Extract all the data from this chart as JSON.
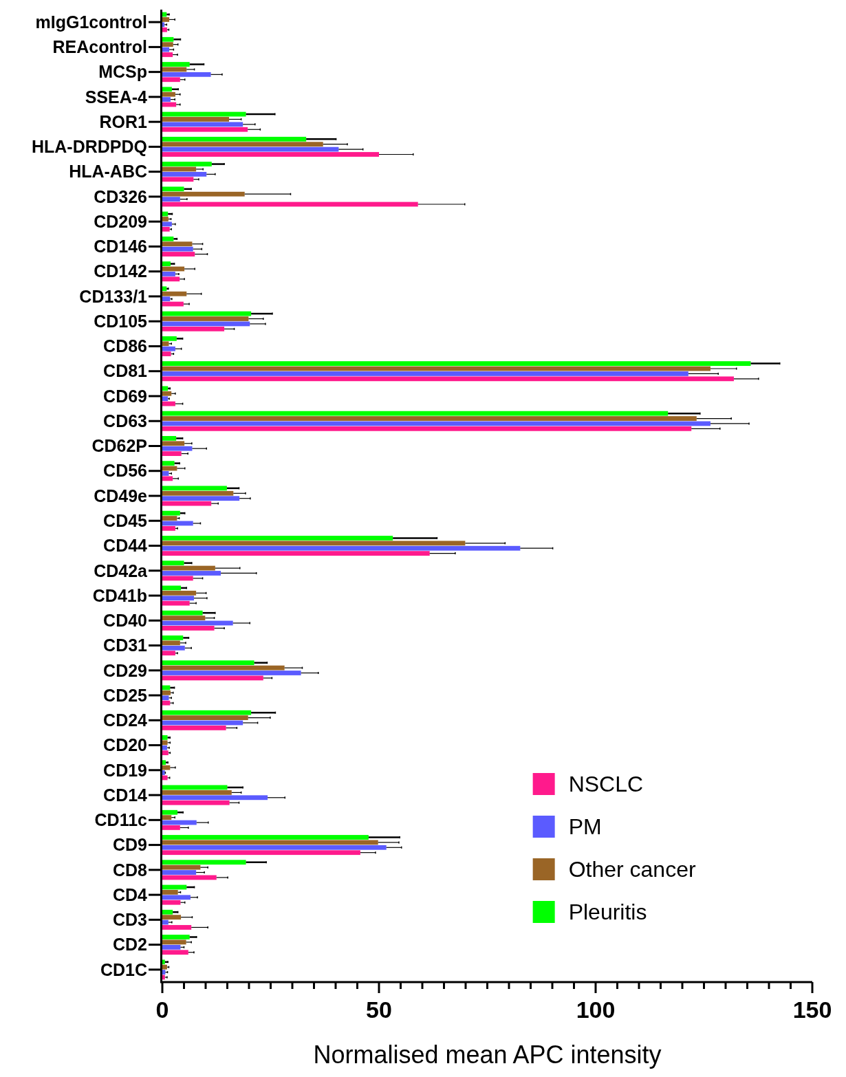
{
  "chart_data": {
    "type": "bar",
    "orientation": "horizontal",
    "xlabel": "Normalised mean APC intensity",
    "categories": [
      "mIgG1control",
      "REAcontrol",
      "MCSp",
      "SSEA-4",
      "ROR1",
      "HLA-DRDPDQ",
      "HLA-ABC",
      "CD326",
      "CD209",
      "CD146",
      "CD142",
      "CD133/1",
      "CD105",
      "CD86",
      "CD81",
      "CD69",
      "CD63",
      "CD62P",
      "CD56",
      "CD49e",
      "CD45",
      "CD44",
      "CD42a",
      "CD41b",
      "CD40",
      "CD31",
      "CD29",
      "CD25",
      "CD24",
      "CD20",
      "CD19",
      "CD14",
      "CD11c",
      "CD9",
      "CD8",
      "CD4",
      "CD3",
      "CD2",
      "CD1C"
    ],
    "series": [
      {
        "name": "NSCLC",
        "color": "#ff1a8c",
        "values": [
          1.1,
          2.4,
          4.1,
          3.2,
          19.7,
          50.0,
          7.2,
          59.0,
          1.7,
          7.5,
          4.0,
          4.9,
          14.3,
          2.0,
          131.9,
          3.0,
          122.1,
          4.4,
          2.4,
          11.3,
          3.0,
          61.7,
          7.1,
          6.3,
          12.0,
          3.0,
          23.3,
          1.8,
          14.7,
          1.4,
          1.2,
          15.5,
          4.1,
          45.7,
          12.5,
          4.2,
          6.7,
          6.0,
          0.6
        ],
        "errors": [
          [
            1.1,
            1.5
          ],
          [
            2.4,
            3.5
          ],
          [
            4.1,
            5.2
          ],
          [
            3.2,
            4.1
          ],
          [
            19.7,
            22.6
          ],
          [
            50.0,
            57.9
          ],
          [
            7.2,
            8.4
          ],
          [
            59.0,
            69.8
          ],
          [
            1.7,
            2.1
          ],
          [
            7.5,
            10.4
          ],
          [
            4.0,
            5.1
          ],
          [
            4.9,
            6.2
          ],
          [
            14.3,
            16.6
          ],
          [
            2.0,
            2.6
          ],
          [
            131.9,
            137.6
          ],
          [
            3.0,
            4.7
          ],
          [
            122.1,
            128.7
          ],
          [
            4.4,
            5.9
          ],
          [
            2.4,
            3.7
          ],
          [
            11.3,
            12.9
          ],
          [
            3.0,
            3.5
          ],
          [
            61.7,
            67.6
          ],
          [
            7.1,
            9.3
          ],
          [
            6.3,
            7.8
          ],
          [
            12.0,
            14.3
          ],
          [
            3.0,
            3.5
          ],
          [
            23.3,
            25.3
          ],
          [
            1.8,
            2.5
          ],
          [
            14.7,
            17.2
          ],
          [
            1.4,
            1.8
          ],
          [
            1.2,
            1.7
          ],
          [
            15.5,
            17.7
          ],
          [
            4.1,
            6.0
          ],
          [
            45.7,
            49.2
          ],
          [
            12.5,
            15.1
          ],
          [
            4.2,
            5.2
          ],
          [
            6.7,
            10.5
          ],
          [
            6.0,
            7.3
          ],
          [
            0.6,
            1.1
          ]
        ]
      },
      {
        "name": "PM",
        "color": "#5b5bff",
        "values": [
          0.5,
          1.6,
          11.2,
          1.9,
          18.6,
          40.7,
          10.2,
          4.1,
          2.2,
          7.1,
          3.0,
          1.8,
          20.2,
          3.0,
          121.4,
          1.3,
          126.5,
          6.9,
          1.5,
          17.8,
          7.1,
          82.6,
          13.5,
          7.3,
          16.3,
          5.2,
          32.0,
          1.5,
          18.6,
          1.1,
          0.6,
          24.3,
          7.9,
          51.7,
          7.8,
          6.5,
          1.4,
          4.2,
          0.7
        ],
        "errors": [
          [
            0.5,
            1.0
          ],
          [
            1.6,
            2.6
          ],
          [
            11.2,
            13.8
          ],
          [
            1.9,
            2.9
          ],
          [
            18.6,
            21.4
          ],
          [
            40.7,
            46.3
          ],
          [
            10.2,
            12.2
          ],
          [
            4.1,
            5.7
          ],
          [
            2.2,
            3.0
          ],
          [
            7.1,
            9.1
          ],
          [
            3.0,
            3.8
          ],
          [
            1.8,
            2.2
          ],
          [
            20.2,
            23.8
          ],
          [
            3.0,
            4.4
          ],
          [
            121.4,
            128.3
          ],
          [
            1.3,
            1.6
          ],
          [
            126.5,
            135.4
          ],
          [
            6.9,
            10.2
          ],
          [
            1.5,
            2.1
          ],
          [
            17.8,
            20.3
          ],
          [
            7.1,
            8.8
          ],
          [
            82.6,
            90.1
          ],
          [
            13.5,
            21.7
          ],
          [
            7.3,
            10.3
          ],
          [
            16.3,
            20.2
          ],
          [
            5.2,
            6.7
          ],
          [
            32.0,
            36.0
          ],
          [
            1.5,
            2.1
          ],
          [
            18.6,
            22.0
          ],
          [
            1.1,
            1.6
          ],
          [
            0.6,
            0.7
          ],
          [
            24.3,
            28.3
          ],
          [
            7.9,
            10.6
          ],
          [
            51.7,
            55.2
          ],
          [
            7.8,
            9.7
          ],
          [
            6.5,
            8.1
          ],
          [
            1.4,
            2.2
          ],
          [
            4.2,
            5.0
          ],
          [
            0.7,
            1.2
          ]
        ]
      },
      {
        "name": "Other cancer",
        "color": "#9a6526",
        "values": [
          1.6,
          2.5,
          5.6,
          3.0,
          15.4,
          37.1,
          7.8,
          19.0,
          1.4,
          6.9,
          5.1,
          5.6,
          19.9,
          1.5,
          126.5,
          2.1,
          123.3,
          5.1,
          3.4,
          16.4,
          3.4,
          69.9,
          12.2,
          7.8,
          9.9,
          4.1,
          28.2,
          1.9,
          19.8,
          1.2,
          1.8,
          16.0,
          2.1,
          49.8,
          8.8,
          3.6,
          4.3,
          5.5,
          1.1
        ],
        "errors": [
          [
            1.6,
            2.9
          ],
          [
            2.5,
            3.6
          ],
          [
            5.6,
            7.4
          ],
          [
            3.0,
            4.1
          ],
          [
            15.4,
            18.2
          ],
          [
            37.1,
            42.7
          ],
          [
            7.8,
            9.4
          ],
          [
            19.0,
            29.6
          ],
          [
            1.4,
            2.0
          ],
          [
            6.9,
            9.3
          ],
          [
            5.1,
            7.5
          ],
          [
            5.6,
            9.0
          ],
          [
            19.9,
            23.3
          ],
          [
            1.5,
            2.1
          ],
          [
            126.5,
            132.5
          ],
          [
            2.1,
            3.0
          ],
          [
            123.3,
            131.3
          ],
          [
            5.1,
            6.8
          ],
          [
            3.4,
            5.2
          ],
          [
            16.4,
            19.2
          ],
          [
            3.4,
            3.9
          ],
          [
            69.9,
            79.1
          ],
          [
            12.2,
            17.9
          ],
          [
            7.8,
            10.1
          ],
          [
            9.9,
            12.0
          ],
          [
            4.1,
            5.4
          ],
          [
            28.2,
            32.3
          ],
          [
            1.9,
            2.5
          ],
          [
            19.8,
            24.9
          ],
          [
            1.2,
            1.8
          ],
          [
            1.8,
            3.0
          ],
          [
            16.0,
            18.2
          ],
          [
            2.1,
            2.9
          ],
          [
            49.8,
            54.6
          ],
          [
            8.8,
            10.5
          ],
          [
            3.6,
            4.2
          ],
          [
            4.3,
            6.9
          ],
          [
            5.5,
            6.7
          ],
          [
            1.1,
            1.5
          ]
        ]
      },
      {
        "name": "Pleuritis",
        "color": "#00ff00",
        "values": [
          1.0,
          2.6,
          6.3,
          2.2,
          19.3,
          33.2,
          11.4,
          5.0,
          1.3,
          2.6,
          1.9,
          1.0,
          20.5,
          3.3,
          135.8,
          1.3,
          116.7,
          3.2,
          2.8,
          14.9,
          4.1,
          53.2,
          5.0,
          4.3,
          9.3,
          4.8,
          21.2,
          1.8,
          20.5,
          1.2,
          0.8,
          15.0,
          3.5,
          47.6,
          19.3,
          5.6,
          2.4,
          6.3,
          0.6
        ],
        "errors": [
          [
            1.0,
            1.6
          ],
          [
            2.6,
            4.2
          ],
          [
            6.3,
            9.6
          ],
          [
            2.2,
            3.7
          ],
          [
            19.3,
            26.0
          ],
          [
            33.2,
            40.1
          ],
          [
            11.4,
            14.3
          ],
          [
            5.0,
            6.7
          ],
          [
            1.3,
            2.3
          ],
          [
            2.6,
            3.4
          ],
          [
            1.9,
            2.8
          ],
          [
            1.0,
            1.4
          ],
          [
            20.5,
            25.4
          ],
          [
            3.3,
            4.7
          ],
          [
            135.8,
            142.5
          ],
          [
            1.3,
            1.8
          ],
          [
            116.7,
            124.1
          ],
          [
            3.2,
            4.7
          ],
          [
            2.8,
            4.0
          ],
          [
            14.9,
            17.7
          ],
          [
            4.1,
            5.2
          ],
          [
            53.2,
            63.4
          ],
          [
            5.0,
            6.8
          ],
          [
            4.3,
            5.6
          ],
          [
            9.3,
            12.2
          ],
          [
            4.8,
            6.1
          ],
          [
            21.2,
            24.2
          ],
          [
            1.8,
            2.8
          ],
          [
            20.5,
            26.1
          ],
          [
            1.2,
            1.8
          ],
          [
            0.8,
            1.3
          ],
          [
            15.0,
            18.6
          ],
          [
            3.5,
            4.8
          ],
          [
            47.6,
            54.8
          ],
          [
            19.3,
            24.0
          ],
          [
            5.6,
            7.4
          ],
          [
            2.4,
            3.6
          ],
          [
            6.3,
            7.9
          ],
          [
            0.6,
            1.3
          ]
        ]
      }
    ],
    "xlim": [
      0,
      150
    ],
    "xticks": [
      0,
      {
        "value": 5,
        "label": null
      },
      {
        "value": 10,
        "label": null
      },
      {
        "value": 15,
        "label": null
      },
      {
        "value": 20,
        "label": null
      },
      {
        "value": 25,
        "label": null
      },
      {
        "value": 30,
        "label": null
      },
      {
        "value": 35,
        "label": null
      },
      {
        "value": 40,
        "label": null
      },
      {
        "value": 45,
        "label": null
      },
      50,
      {
        "value": 55,
        "label": null
      },
      {
        "value": 60,
        "label": null
      },
      {
        "value": 65,
        "label": null
      },
      {
        "value": 70,
        "label": null
      },
      {
        "value": 75,
        "label": null
      },
      {
        "value": 80,
        "label": null
      },
      {
        "value": 85,
        "label": null
      },
      {
        "value": 90,
        "label": null
      },
      {
        "value": 95,
        "label": null
      },
      100,
      {
        "value": 105,
        "label": null
      },
      {
        "value": 110,
        "label": null
      },
      {
        "value": 115,
        "label": null
      },
      {
        "value": 120,
        "label": null
      },
      {
        "value": 125,
        "label": null
      },
      {
        "value": 130,
        "label": null
      },
      {
        "value": 135,
        "label": null
      },
      {
        "value": 140,
        "label": null
      },
      {
        "value": 145,
        "label": null
      },
      150
    ],
    "legend": "bottom right",
    "grid": false
  }
}
